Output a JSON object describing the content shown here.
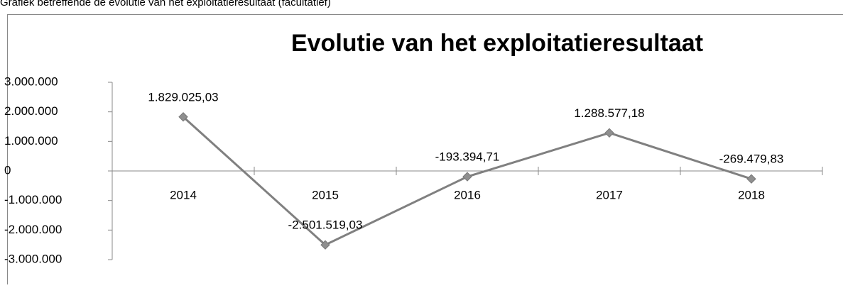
{
  "caption": "Grafiek betreffende de evolutie van het exploitatieresultaat (facultatief)",
  "chart_data": {
    "type": "line",
    "title": "Evolutie van het exploitatieresultaat",
    "categories": [
      "2014",
      "2015",
      "2016",
      "2017",
      "2018"
    ],
    "values": [
      1829025.03,
      -2501519.03,
      -193394.71,
      1288577.18,
      -269479.83
    ],
    "value_labels": [
      "1.829.025,03",
      "-2.501.519,03",
      "-193.394,71",
      "1.288.577,18",
      "-269.479,83"
    ],
    "color": "#808080",
    "marker_color": "#8f8f8f",
    "ylim": [
      -3000000,
      3000000
    ],
    "yticks": [
      {
        "value": 3000000,
        "label": "3.000.000"
      },
      {
        "value": 2000000,
        "label": "2.000.000"
      },
      {
        "value": 1000000,
        "label": "1.000.000"
      },
      0,
      {
        "value": -1000000,
        "label": "-1.000.000"
      },
      {
        "value": -2000000,
        "label": "-2.000.000"
      },
      {
        "value": -3000000,
        "label": "-3.000.000"
      }
    ],
    "grid": false
  }
}
